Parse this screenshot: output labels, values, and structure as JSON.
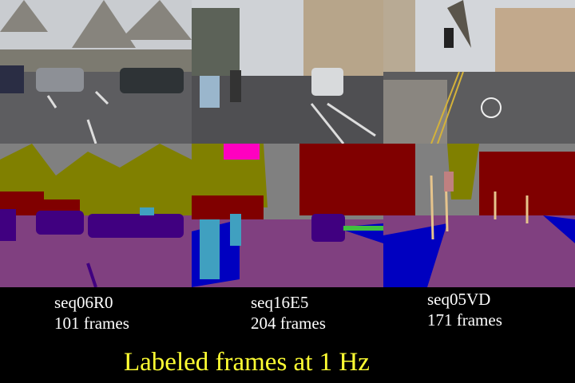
{
  "sequences": [
    {
      "name": "seq06R0",
      "frames": "101 frames"
    },
    {
      "name": "seq16E5",
      "frames": "204 frames"
    },
    {
      "name": "seq05VD",
      "frames": "171 frames"
    }
  ],
  "title": "Labeled frames at 1 Hz",
  "colors": {
    "sky": "#808080",
    "building": "#800000",
    "tree": "#808000",
    "road": "#804080",
    "car": "#400080",
    "sidewalk": "#0000c0",
    "pedestrian": "#40a0c0",
    "title_text": "#ffff33"
  }
}
